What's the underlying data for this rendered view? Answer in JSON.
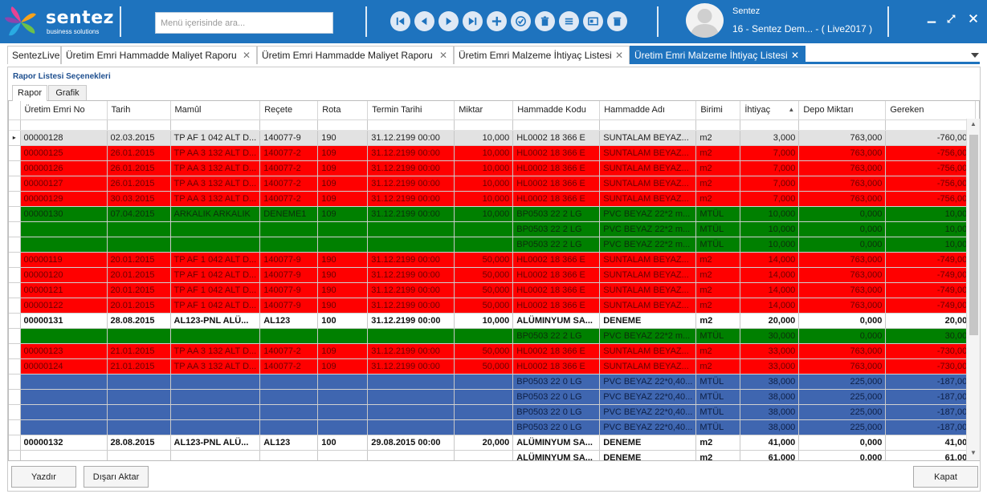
{
  "app": {
    "logo_text": "sentez",
    "logo_sub": "business solutions",
    "search_placeholder": "Menü içerisinde ara...",
    "user_name": "Sentez",
    "company": "16 - Sentez Dem... - ( Live2017 )"
  },
  "toolbar_icons": [
    "first-record-icon",
    "previous-record-icon",
    "next-record-icon",
    "last-record-icon",
    "add-icon",
    "approve-icon",
    "delete-icon",
    "list-icon",
    "card-icon",
    "trash-icon"
  ],
  "tabs": [
    {
      "label": "SentezLive",
      "closable": false
    },
    {
      "label": "Üretim Emri Hammadde Maliyet Raporu",
      "closable": true
    },
    {
      "label": "Üretim Emri Hammadde Maliyet Raporu",
      "closable": true
    },
    {
      "label": "Üretim Emri Malzeme İhtiyaç Listesi",
      "closable": true
    },
    {
      "label": "Üretim Emri Malzeme İhtiyaç Listesi",
      "closable": true,
      "active": true
    }
  ],
  "panel": {
    "title": "Rapor Listesi Seçenekleri",
    "subtabs": [
      "Rapor",
      "Grafik"
    ]
  },
  "grid": {
    "columns": [
      "Üretim Emri No",
      "Tarih",
      "Mamûl",
      "Reçete",
      "Rota",
      "Termin Tarihi",
      "Miktar",
      "Hammadde Kodu",
      "Hammadde Adı",
      "Birimi",
      "İhtiyaç",
      "Depo Miktarı",
      "Gereken"
    ],
    "sort_column": "İhtiyaç",
    "rows": [
      {
        "style": "gray",
        "indicator": true,
        "cells": [
          "00000128",
          "02.03.2015",
          "TP AF 1 042  ALT D...",
          "140077-9",
          "190",
          "31.12.2199 00:00",
          "10,000",
          "HL0002 18 366 E",
          "SUNTALAM BEYAZ...",
          "m2",
          "3,000",
          "763,000",
          "-760,000"
        ]
      },
      {
        "style": "red",
        "cells": [
          "00000125",
          "26.01.2015",
          "TP AA 3 132  ALT D...",
          "140077-2",
          "109",
          "31.12.2199 00:00",
          "10,000",
          "HL0002 18 366 E",
          "SUNTALAM BEYAZ...",
          "m2",
          "7,000",
          "763,000",
          "-756,000"
        ]
      },
      {
        "style": "red",
        "cells": [
          "00000126",
          "26.01.2015",
          "TP AA 3 132  ALT D...",
          "140077-2",
          "109",
          "31.12.2199 00:00",
          "10,000",
          "HL0002 18 366 E",
          "SUNTALAM BEYAZ...",
          "m2",
          "7,000",
          "763,000",
          "-756,000"
        ]
      },
      {
        "style": "red",
        "cells": [
          "00000127",
          "26.01.2015",
          "TP AA 3 132  ALT D...",
          "140077-2",
          "109",
          "31.12.2199 00:00",
          "10,000",
          "HL0002 18 366 E",
          "SUNTALAM BEYAZ...",
          "m2",
          "7,000",
          "763,000",
          "-756,000"
        ]
      },
      {
        "style": "red",
        "cells": [
          "00000129",
          "30.03.2015",
          "TP AA 3 132  ALT D...",
          "140077-2",
          "109",
          "31.12.2199 00:00",
          "10,000",
          "HL0002 18 366 E",
          "SUNTALAM BEYAZ...",
          "m2",
          "7,000",
          "763,000",
          "-756,000"
        ]
      },
      {
        "style": "green",
        "cells": [
          "00000130",
          "07.04.2015",
          "ARKALIK  ARKALIK",
          "DENEME1",
          "109",
          "31.12.2199 00:00",
          "10,000",
          "BP0503 22 2 LG",
          "PVC BEYAZ 22*2 m...",
          "MTÜL",
          "10,000",
          "0,000",
          "10,000"
        ]
      },
      {
        "style": "green",
        "cells": [
          "",
          "",
          "",
          "",
          "",
          "",
          "",
          "BP0503 22 2 LG",
          "PVC BEYAZ 22*2 m...",
          "MTÜL",
          "10,000",
          "0,000",
          "10,000"
        ]
      },
      {
        "style": "green",
        "cells": [
          "",
          "",
          "",
          "",
          "",
          "",
          "",
          "BP0503 22 2 LG",
          "PVC BEYAZ 22*2 m...",
          "MTÜL",
          "10,000",
          "0,000",
          "10,000"
        ]
      },
      {
        "style": "red",
        "cells": [
          "00000119",
          "20.01.2015",
          "TP AF 1 042  ALT D...",
          "140077-9",
          "190",
          "31.12.2199 00:00",
          "50,000",
          "HL0002 18 366 E",
          "SUNTALAM BEYAZ...",
          "m2",
          "14,000",
          "763,000",
          "-749,000"
        ]
      },
      {
        "style": "red",
        "cells": [
          "00000120",
          "20.01.2015",
          "TP AF 1 042  ALT D...",
          "140077-9",
          "190",
          "31.12.2199 00:00",
          "50,000",
          "HL0002 18 366 E",
          "SUNTALAM BEYAZ...",
          "m2",
          "14,000",
          "763,000",
          "-749,000"
        ]
      },
      {
        "style": "red",
        "cells": [
          "00000121",
          "20.01.2015",
          "TP AF 1 042  ALT D...",
          "140077-9",
          "190",
          "31.12.2199 00:00",
          "50,000",
          "HL0002 18 366 E",
          "SUNTALAM BEYAZ...",
          "m2",
          "14,000",
          "763,000",
          "-749,000"
        ]
      },
      {
        "style": "red",
        "cells": [
          "00000122",
          "20.01.2015",
          "TP AF 1 042  ALT D...",
          "140077-9",
          "190",
          "31.12.2199 00:00",
          "50,000",
          "HL0002 18 366 E",
          "SUNTALAM BEYAZ...",
          "m2",
          "14,000",
          "763,000",
          "-749,000"
        ]
      },
      {
        "style": "bold",
        "cells": [
          "00000131",
          "28.08.2015",
          "AL123-PNL  ALÜ...",
          "AL123",
          "100",
          "31.12.2199 00:00",
          "10,000",
          "ALÜMINYUM SA...",
          "DENEME",
          "m2",
          "20,000",
          "0,000",
          "20,000"
        ]
      },
      {
        "style": "green",
        "cells": [
          "",
          "",
          "",
          "",
          "",
          "",
          "",
          "BP0503 22 2 LG",
          "PVC BEYAZ 22*2 m...",
          "MTÜL",
          "30,000",
          "0,000",
          "30,000"
        ]
      },
      {
        "style": "red",
        "cells": [
          "00000123",
          "21.01.2015",
          "TP AA 3 132  ALT D...",
          "140077-2",
          "109",
          "31.12.2199 00:00",
          "50,000",
          "HL0002 18 366 E",
          "SUNTALAM BEYAZ...",
          "m2",
          "33,000",
          "763,000",
          "-730,000"
        ]
      },
      {
        "style": "red",
        "cells": [
          "00000124",
          "21.01.2015",
          "TP AA 3 132  ALT D...",
          "140077-2",
          "109",
          "31.12.2199 00:00",
          "50,000",
          "HL0002 18 366 E",
          "SUNTALAM BEYAZ...",
          "m2",
          "33,000",
          "763,000",
          "-730,000"
        ]
      },
      {
        "style": "blue",
        "cells": [
          "",
          "",
          "",
          "",
          "",
          "",
          "",
          "BP0503 22 0 LG",
          "PVC BEYAZ 22*0,40...",
          "MTÜL",
          "38,000",
          "225,000",
          "-187,000"
        ]
      },
      {
        "style": "blue",
        "cells": [
          "",
          "",
          "",
          "",
          "",
          "",
          "",
          "BP0503 22 0 LG",
          "PVC BEYAZ 22*0,40...",
          "MTÜL",
          "38,000",
          "225,000",
          "-187,000"
        ]
      },
      {
        "style": "blue",
        "cells": [
          "",
          "",
          "",
          "",
          "",
          "",
          "",
          "BP0503 22 0 LG",
          "PVC BEYAZ 22*0,40...",
          "MTÜL",
          "38,000",
          "225,000",
          "-187,000"
        ]
      },
      {
        "style": "blue",
        "cells": [
          "",
          "",
          "",
          "",
          "",
          "",
          "",
          "BP0503 22 0 LG",
          "PVC BEYAZ 22*0,40...",
          "MTÜL",
          "38,000",
          "225,000",
          "-187,000"
        ]
      },
      {
        "style": "bold",
        "cells": [
          "00000132",
          "28.08.2015",
          "AL123-PNL  ALÜ...",
          "AL123",
          "100",
          "29.08.2015 00:00",
          "20,000",
          "ALÜMINYUM SA...",
          "DENEME",
          "m2",
          "41,000",
          "0,000",
          "41,000"
        ]
      },
      {
        "style": "bold",
        "cells": [
          "",
          "",
          "",
          "",
          "",
          "",
          "",
          "ALÜMINYUM SA...",
          "DENEME",
          "m2",
          "61,000",
          "0,000",
          "61,000"
        ]
      }
    ]
  },
  "buttons": {
    "print": "Yazdır",
    "export": "Dışarı Aktar",
    "close": "Kapat"
  },
  "colors": {
    "accent": "#1e73be",
    "row_red": "#ff0000",
    "row_green": "#008000",
    "row_blue": "#3f66b0",
    "row_selected": "#e2e2e2"
  }
}
